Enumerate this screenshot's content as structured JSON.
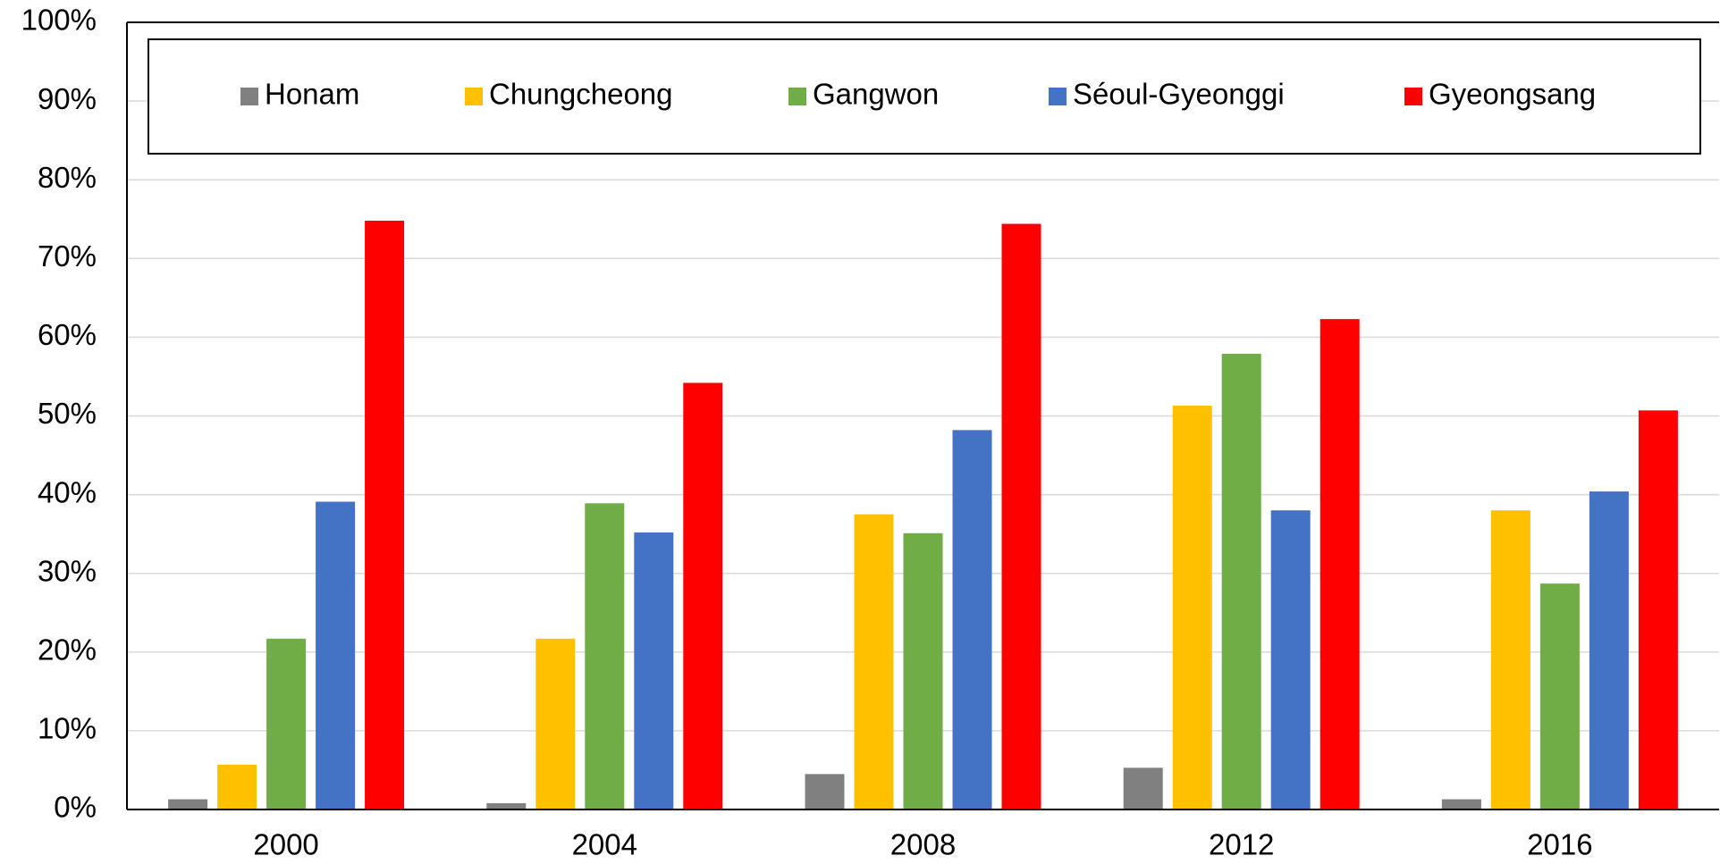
{
  "chart_data": {
    "type": "bar",
    "categories": [
      "2000",
      "2004",
      "2008",
      "2012",
      "2016"
    ],
    "series": [
      {
        "name": "Honam",
        "color": "#808080",
        "values": [
          1.3,
          0.8,
          4.5,
          5.3,
          1.3
        ]
      },
      {
        "name": "Chungcheong",
        "color": "#ffc000",
        "values": [
          5.7,
          21.7,
          37.5,
          51.3,
          38.0
        ]
      },
      {
        "name": "Gangwon",
        "color": "#70ad47",
        "values": [
          21.7,
          38.9,
          35.1,
          57.9,
          28.7
        ]
      },
      {
        "name": "Séoul-Gyeonggi",
        "color": "#4472c4",
        "values": [
          39.1,
          35.2,
          48.2,
          38.0,
          40.4
        ]
      },
      {
        "name": "Gyeongsang",
        "color": "#ff0000",
        "values": [
          74.8,
          54.2,
          74.4,
          62.3,
          50.7
        ]
      }
    ],
    "ylim": [
      0,
      100
    ],
    "yticks": [
      {
        "value": 0,
        "label": "0%"
      },
      {
        "value": 10,
        "label": "10%"
      },
      {
        "value": 20,
        "label": "20%"
      },
      {
        "value": 30,
        "label": "30%"
      },
      {
        "value": 40,
        "label": "40%"
      },
      {
        "value": 50,
        "label": "50%"
      },
      {
        "value": 60,
        "label": "60%"
      },
      {
        "value": 70,
        "label": "70%"
      },
      {
        "value": 80,
        "label": "80%"
      },
      {
        "value": 90,
        "label": "90%"
      },
      {
        "value": 100,
        "label": "100%"
      }
    ],
    "grid": true,
    "legend": "top"
  }
}
